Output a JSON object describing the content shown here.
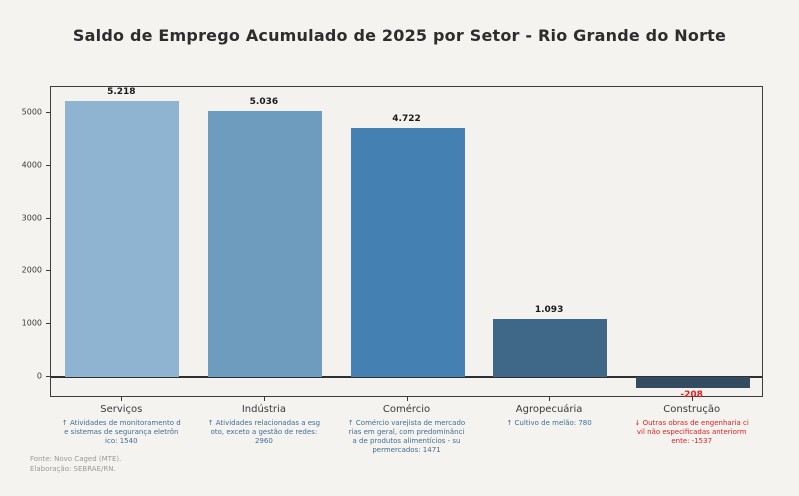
{
  "title": "Saldo de Emprego Acumulado de 2025 por Setor - Rio Grande do Norte",
  "chart_data": {
    "type": "bar",
    "title": "Saldo de Emprego Acumulado de 2025 por Setor - Rio Grande do Norte",
    "xlabel": "",
    "ylabel": "",
    "ylim": [
      -500,
      5500
    ],
    "yticks": [
      0,
      1000,
      2000,
      3000,
      4000,
      5000
    ],
    "grid": false,
    "legend": null,
    "categories": [
      "Serviços",
      "Indústria",
      "Comércio",
      "Agropecuária",
      "Construção"
    ],
    "values": [
      5218,
      5036,
      4722,
      1093,
      -208
    ],
    "value_labels": [
      "5.218",
      "5.036",
      "4.722",
      "1.093",
      "-208"
    ],
    "bar_colors": [
      "#8fb4d1",
      "#6d9cbe",
      "#4480b2",
      "#3f6787",
      "#344c60"
    ],
    "annotation_colors": {
      "positive": "#3f6e96",
      "negative": "#e02020"
    },
    "annotations": [
      {
        "direction": "up",
        "lines": [
          "↑ Atividades de monitoramento d",
          "e sistemas de segurança eletrôn",
          "ico: 1540"
        ]
      },
      {
        "direction": "up",
        "lines": [
          "↑ Atividades relacionadas a esg",
          "oto, exceto a gestão de redes:",
          "2960"
        ]
      },
      {
        "direction": "up",
        "lines": [
          "↑ Comércio varejista de mercado",
          "rias em geral, com predominânci",
          "a de produtos alimentícios - su",
          "permercados: 1471"
        ]
      },
      {
        "direction": "up",
        "lines": [
          "↑ Cultivo de melão: 780"
        ]
      },
      {
        "direction": "down",
        "lines": [
          "↓ Outras obras de engenharia ci",
          "vil não especificadas anteriorm",
          "ente: -1537"
        ]
      }
    ]
  },
  "footer": {
    "line1": "Fonte: Novo Caged (MTE).",
    "line2": "Elaboração: SEBRAE/RN."
  }
}
